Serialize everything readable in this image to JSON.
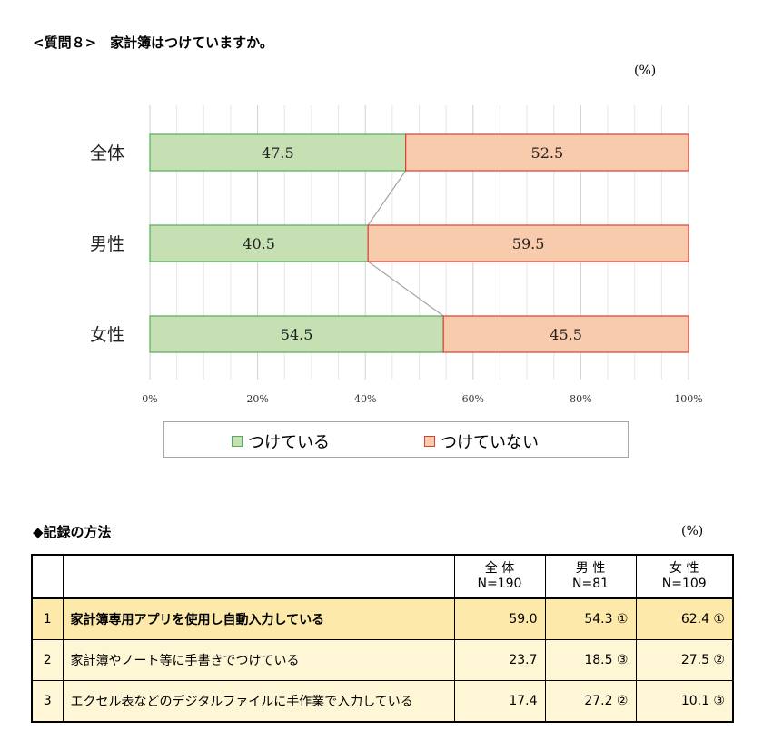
{
  "title": "<質問８>　家計簿はつけていますか。",
  "unit_label": "(%)",
  "chart_data": {
    "type": "bar",
    "stacked": true,
    "orientation": "horizontal",
    "categories": [
      "全体",
      "男性",
      "女性"
    ],
    "series": [
      {
        "name": "つけている",
        "values": [
          47.5,
          40.5,
          54.5
        ],
        "color": "#c6e0b4",
        "border": "#4fad5b"
      },
      {
        "name": "つけていない",
        "values": [
          52.5,
          59.5,
          45.5
        ],
        "color": "#f8cbad",
        "border": "#e03c31"
      }
    ],
    "xlim": [
      0,
      100
    ],
    "xticks": [
      "0%",
      "20%",
      "40%",
      "60%",
      "80%",
      "100%"
    ],
    "grid": true,
    "legend_position": "bottom"
  },
  "table": {
    "title": "◆記録の方法",
    "unit_label": "(%)",
    "headers": [
      {
        "name": "全 体",
        "n": "N=190"
      },
      {
        "name": "男 性",
        "n": "N=81"
      },
      {
        "name": "女 性",
        "n": "N=109"
      }
    ],
    "rows": [
      {
        "no": "1",
        "label": "家計簿専用アプリを使用し自動入力している",
        "values": [
          "59.0",
          "54.3 ①",
          "62.4 ①"
        ]
      },
      {
        "no": "2",
        "label": "家計簿やノート等に手書きでつけている",
        "values": [
          "23.7",
          "18.5 ③",
          "27.5 ②"
        ]
      },
      {
        "no": "3",
        "label": "エクセル表などのデジタルファイルに手作業で入力している",
        "values": [
          "17.4",
          "27.2 ②",
          "10.1 ③"
        ]
      }
    ]
  }
}
